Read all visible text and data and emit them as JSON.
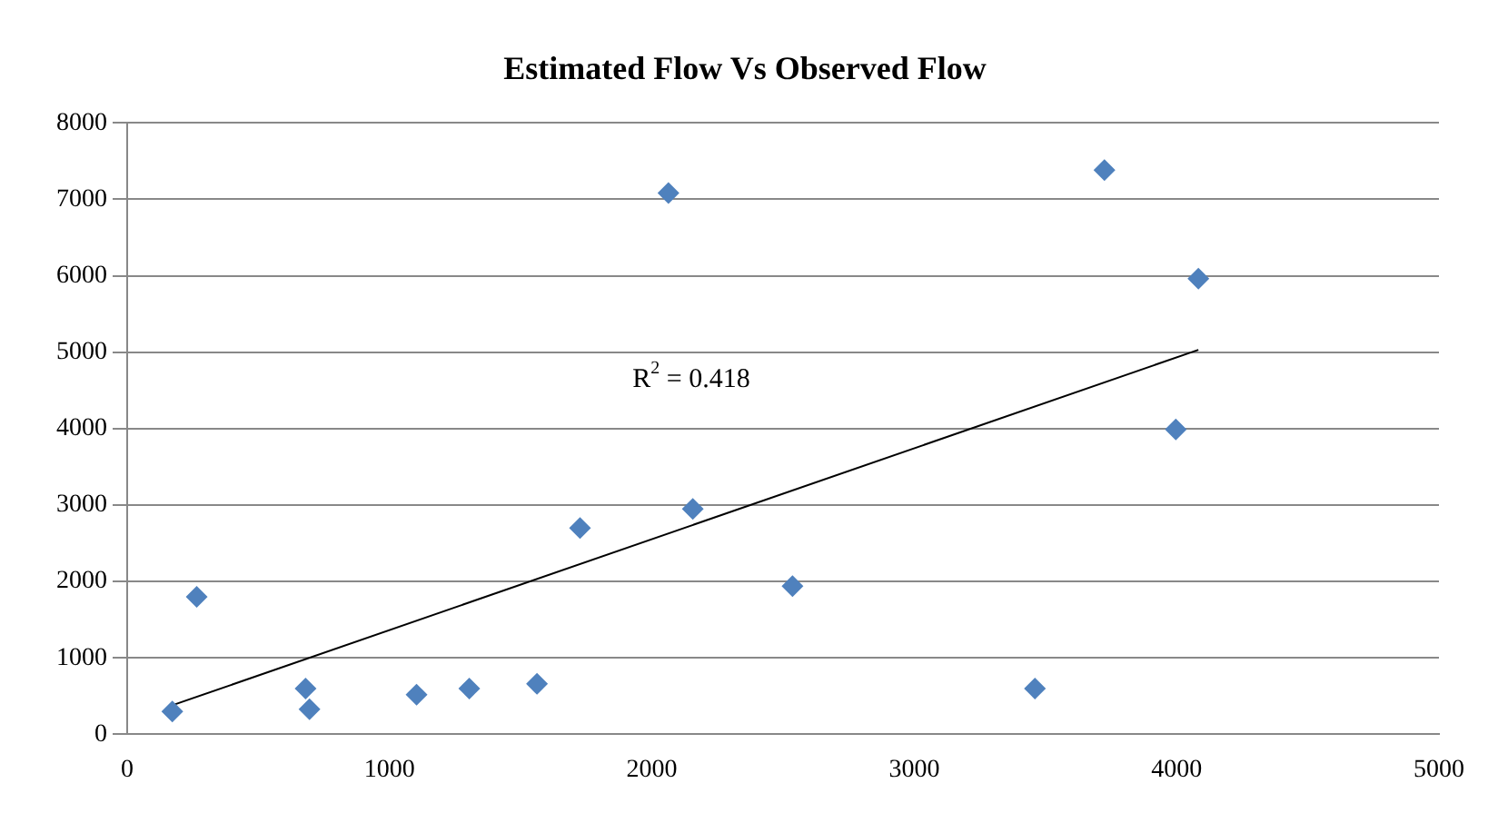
{
  "chart_data": {
    "type": "scatter",
    "title": "Estimated Flow Vs Observed Flow",
    "series": [
      {
        "color": "#4f81bd",
        "marker": "diamond",
        "x": [
          172,
          265,
          680,
          695,
          1103,
          1304,
          1562,
          1726,
          2063,
          2156,
          2536,
          3460,
          3725,
          3997,
          4083
        ],
        "values": [
          300,
          1800,
          600,
          330,
          520,
          600,
          660,
          2700,
          7080,
          2950,
          1940,
          600,
          7380,
          3990,
          5960
        ]
      },
      {
        "type": "line",
        "color": "#000000",
        "marker": "none",
        "x": [
          172,
          4083
        ],
        "values": [
          380,
          5030
        ]
      }
    ],
    "annotations": [
      "R$^{2}$ = 0.418"
    ],
    "xlim": [
      0,
      5000
    ],
    "xticks": [
      0,
      1000,
      2000,
      3000,
      4000,
      5000
    ],
    "ylim": [
      0,
      8000
    ],
    "yticks": [
      0,
      1000,
      2000,
      3000,
      4000,
      5000,
      6000,
      7000,
      8000
    ],
    "grid": "y",
    "legend": false
  }
}
